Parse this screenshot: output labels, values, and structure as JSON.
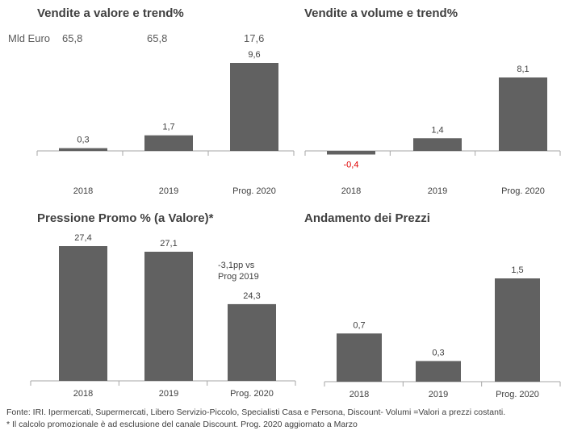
{
  "panels_text": {
    "p1_title": "Vendite a valore e trend%",
    "p2_title": "Vendite a volume e trend%",
    "p3_title": "Pressione Promo % (a Valore)*",
    "p4_title": "Andamento dei Prezzi",
    "mld_label": "Mld  Euro",
    "mld_values": [
      "65,8",
      "65,8",
      "17,6"
    ],
    "promo_note": "-3,1pp vs\nProg 2019"
  },
  "footer": {
    "line1": "Fonte: IRI. Ipermercati, Supermercati, Libero Servizio-Piccolo, Specialisti Casa e Persona, Discount-  Volumi =Valori a prezzi costanti.",
    "line2": "* Il calcolo promozionale è ad esclusione del canale Discount. Prog. 2020 aggiornato a Marzo"
  },
  "colors": {
    "bar": "#616161",
    "negative_label": "#e00000",
    "axis": "#a6a6a6",
    "text": "#404040"
  },
  "chart_data": [
    {
      "type": "bar",
      "title": "Vendite a valore e trend%",
      "categories": [
        "2018",
        "2019",
        "Prog. 2020"
      ],
      "values": [
        0.3,
        1.7,
        9.6
      ],
      "labels": [
        "0,3",
        "1,7",
        "9,6"
      ],
      "ylim": [
        0,
        10.5
      ]
    },
    {
      "type": "bar",
      "title": "Vendite a volume e trend%",
      "categories": [
        "2018",
        "2019",
        "Prog. 2020"
      ],
      "values": [
        -0.4,
        1.4,
        8.1
      ],
      "labels": [
        "-0,4",
        "1,4",
        "8,1"
      ],
      "ylim": [
        -0.8,
        9.5
      ]
    },
    {
      "type": "bar",
      "title": "Pressione Promo % (a Valore)*",
      "categories": [
        "2018",
        "2019",
        "Prog. 2020"
      ],
      "values": [
        27.4,
        27.1,
        24.3
      ],
      "labels": [
        "27,4",
        "27,1",
        "24,3"
      ],
      "ylim": [
        20.2,
        28.2
      ]
    },
    {
      "type": "bar",
      "title": "Andamento dei Prezzi",
      "categories": [
        "2018",
        "2019",
        "Prog. 2020"
      ],
      "values": [
        0.7,
        0.3,
        1.5
      ],
      "labels": [
        "0,7",
        "0,3",
        "1,5"
      ],
      "ylim": [
        0,
        1.65
      ]
    }
  ]
}
